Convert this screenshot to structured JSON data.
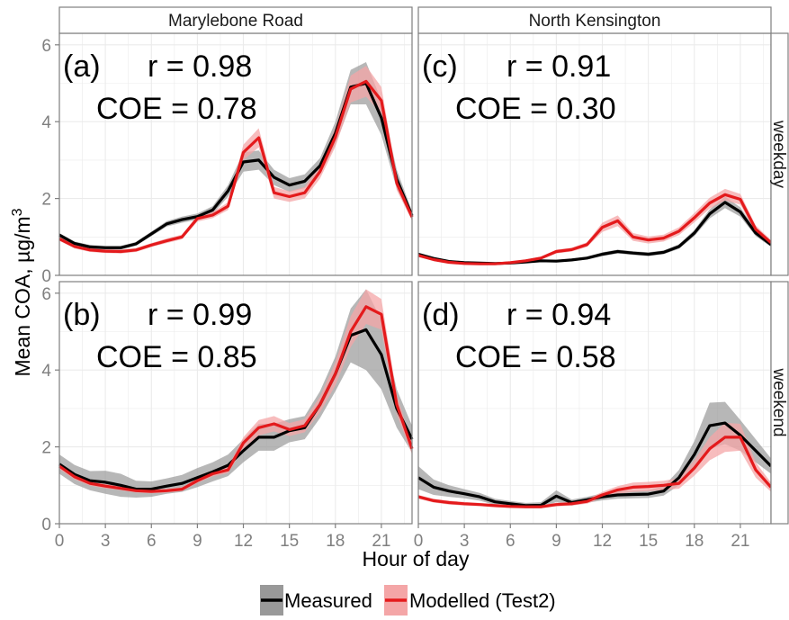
{
  "chart_data": {
    "type": "line",
    "xlabel": "Hour of day",
    "ylabel_main": "Mean COA,  µg/m",
    "ylabel_sup": "3",
    "x_ticks": [
      0,
      3,
      6,
      9,
      12,
      15,
      18,
      21
    ],
    "y_ticks": [
      0,
      2,
      4,
      6
    ],
    "xlim": [
      0,
      23
    ],
    "ylim": [
      0,
      6.3
    ],
    "columns": [
      "Marylebone Road",
      "North Kensington"
    ],
    "rows": [
      "weekday",
      "weekend"
    ],
    "colors": {
      "measured": "#000000",
      "measured_band": "#999999",
      "modelled": "#e41a1c",
      "modelled_band": "#f4a6a7",
      "panel_border": "#7f7f7f",
      "grid": "#ebebeb",
      "strip_fill": "#ffffff"
    },
    "legend": {
      "position": "bottom",
      "items": [
        "Measured",
        "Modelled (Test2)"
      ]
    },
    "x": [
      0,
      1,
      2,
      3,
      4,
      5,
      6,
      7,
      8,
      9,
      10,
      11,
      12,
      13,
      14,
      15,
      16,
      17,
      18,
      19,
      20,
      21,
      22,
      23
    ],
    "panels": [
      {
        "label": "(a)",
        "r_text": "r = 0.98",
        "coe_text": "COE = 0.78",
        "column": "Marylebone Road",
        "row": "weekday",
        "measured": [
          1.05,
          0.83,
          0.74,
          0.72,
          0.72,
          0.82,
          1.08,
          1.34,
          1.45,
          1.53,
          1.7,
          2.2,
          2.95,
          3.0,
          2.55,
          2.35,
          2.45,
          2.85,
          3.7,
          4.9,
          5.0,
          4.1,
          2.5,
          1.55
        ],
        "measured_err": [
          0.05,
          0.05,
          0.05,
          0.05,
          0.05,
          0.05,
          0.06,
          0.07,
          0.08,
          0.08,
          0.1,
          0.15,
          0.25,
          0.25,
          0.2,
          0.18,
          0.18,
          0.2,
          0.3,
          0.45,
          0.55,
          0.45,
          0.25,
          0.12
        ],
        "modelled": [
          0.95,
          0.75,
          0.66,
          0.63,
          0.62,
          0.66,
          0.79,
          0.9,
          1.0,
          1.48,
          1.57,
          1.8,
          3.2,
          3.58,
          2.15,
          2.05,
          2.15,
          2.7,
          3.6,
          4.85,
          5.05,
          4.55,
          2.4,
          1.52
        ],
        "modelled_err": [
          0.05,
          0.05,
          0.05,
          0.05,
          0.05,
          0.05,
          0.05,
          0.06,
          0.06,
          0.08,
          0.08,
          0.1,
          0.2,
          0.25,
          0.15,
          0.14,
          0.15,
          0.18,
          0.25,
          0.35,
          0.4,
          0.35,
          0.18,
          0.1
        ]
      },
      {
        "label": "(c)",
        "r_text": "r = 0.91",
        "coe_text": "COE = 0.30",
        "column": "North Kensington",
        "row": "weekday",
        "measured": [
          0.55,
          0.44,
          0.36,
          0.33,
          0.32,
          0.31,
          0.32,
          0.35,
          0.38,
          0.37,
          0.4,
          0.45,
          0.55,
          0.62,
          0.58,
          0.55,
          0.6,
          0.75,
          1.1,
          1.6,
          1.9,
          1.65,
          1.1,
          0.8
        ],
        "measured_err": [
          0.04,
          0.03,
          0.03,
          0.03,
          0.03,
          0.03,
          0.03,
          0.03,
          0.03,
          0.03,
          0.03,
          0.04,
          0.05,
          0.05,
          0.05,
          0.05,
          0.05,
          0.06,
          0.08,
          0.12,
          0.15,
          0.12,
          0.08,
          0.06
        ],
        "modelled": [
          0.52,
          0.41,
          0.34,
          0.31,
          0.3,
          0.3,
          0.33,
          0.38,
          0.45,
          0.62,
          0.67,
          0.8,
          1.25,
          1.42,
          1.0,
          0.92,
          0.97,
          1.15,
          1.5,
          1.88,
          2.1,
          1.98,
          1.2,
          0.85
        ],
        "modelled_err": [
          0.04,
          0.03,
          0.03,
          0.03,
          0.03,
          0.03,
          0.03,
          0.03,
          0.04,
          0.05,
          0.05,
          0.06,
          0.12,
          0.14,
          0.1,
          0.09,
          0.09,
          0.1,
          0.12,
          0.14,
          0.15,
          0.14,
          0.1,
          0.07
        ]
      },
      {
        "label": "(b)",
        "r_text": "r = 0.99",
        "coe_text": "COE = 0.85",
        "column": "Marylebone Road",
        "row": "weekend",
        "measured": [
          1.55,
          1.28,
          1.12,
          1.08,
          1.0,
          0.9,
          0.9,
          0.98,
          1.05,
          1.2,
          1.35,
          1.52,
          1.9,
          2.25,
          2.25,
          2.42,
          2.5,
          3.1,
          3.9,
          4.9,
          5.05,
          4.4,
          3.0,
          2.2
        ],
        "measured_err": [
          0.25,
          0.25,
          0.25,
          0.3,
          0.3,
          0.22,
          0.2,
          0.2,
          0.22,
          0.25,
          0.25,
          0.28,
          0.3,
          0.35,
          0.35,
          0.3,
          0.3,
          0.35,
          0.45,
          0.7,
          1.05,
          0.9,
          0.5,
          0.35
        ],
        "modelled": [
          1.5,
          1.22,
          1.05,
          0.98,
          0.92,
          0.86,
          0.84,
          0.86,
          0.9,
          1.12,
          1.3,
          1.4,
          2.1,
          2.5,
          2.6,
          2.45,
          2.55,
          3.1,
          3.9,
          5.0,
          5.65,
          5.45,
          3.1,
          1.95
        ],
        "modelled_err": [
          0.08,
          0.07,
          0.06,
          0.06,
          0.05,
          0.05,
          0.05,
          0.05,
          0.05,
          0.06,
          0.07,
          0.08,
          0.15,
          0.2,
          0.2,
          0.17,
          0.17,
          0.2,
          0.3,
          0.4,
          0.45,
          0.4,
          0.25,
          0.15
        ]
      },
      {
        "label": "(d)",
        "r_text": "r = 0.94",
        "coe_text": "COE = 0.58",
        "column": "North Kensington",
        "row": "weekend",
        "measured": [
          1.2,
          0.95,
          0.85,
          0.78,
          0.7,
          0.57,
          0.52,
          0.47,
          0.48,
          0.72,
          0.55,
          0.62,
          0.7,
          0.75,
          0.76,
          0.77,
          0.85,
          1.2,
          1.8,
          2.55,
          2.62,
          2.3,
          1.9,
          1.5
        ],
        "measured_err": [
          0.3,
          0.2,
          0.15,
          0.12,
          0.1,
          0.08,
          0.07,
          0.07,
          0.08,
          0.15,
          0.08,
          0.08,
          0.09,
          0.1,
          0.1,
          0.1,
          0.12,
          0.2,
          0.35,
          0.6,
          0.55,
          0.4,
          0.3,
          0.2
        ],
        "modelled": [
          0.7,
          0.6,
          0.55,
          0.52,
          0.5,
          0.47,
          0.45,
          0.44,
          0.44,
          0.5,
          0.52,
          0.58,
          0.75,
          0.88,
          0.95,
          0.97,
          1.0,
          1.05,
          1.45,
          1.95,
          2.25,
          2.25,
          1.4,
          0.95
        ],
        "modelled_err": [
          0.05,
          0.05,
          0.05,
          0.05,
          0.04,
          0.04,
          0.04,
          0.04,
          0.04,
          0.05,
          0.05,
          0.06,
          0.08,
          0.1,
          0.12,
          0.12,
          0.12,
          0.14,
          0.2,
          0.3,
          0.38,
          0.35,
          0.2,
          0.12
        ]
      }
    ]
  }
}
